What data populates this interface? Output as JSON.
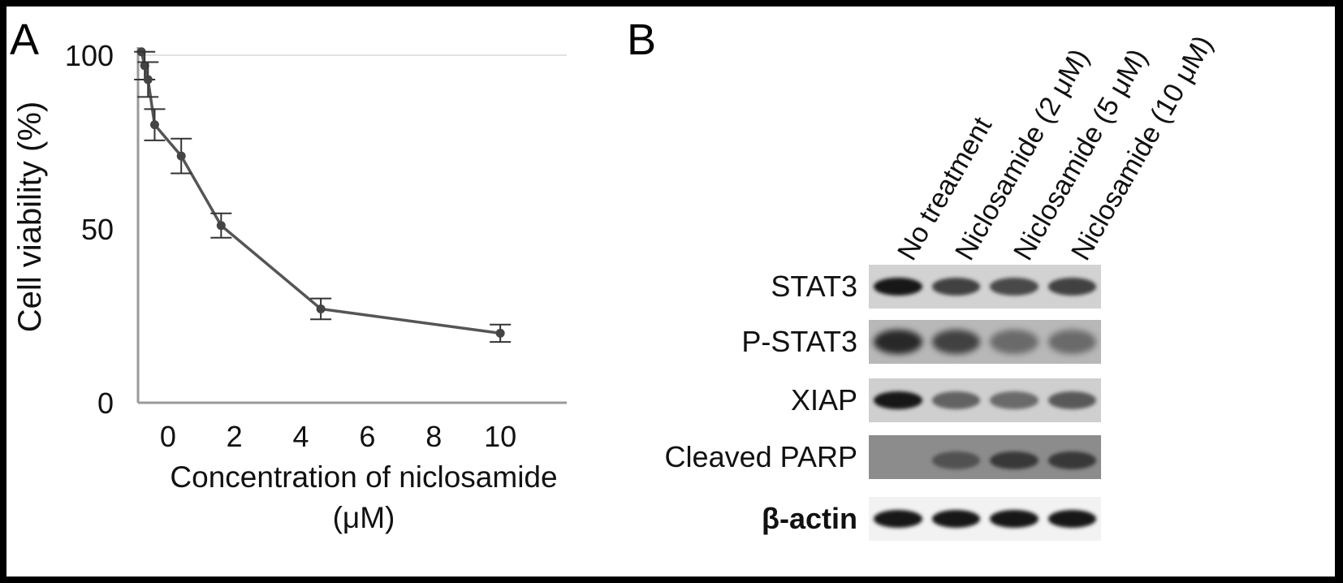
{
  "panel_a": {
    "letter": "A",
    "chart_data": {
      "type": "line",
      "title": "",
      "xlabel": "Concentration of niclosamide (μM)",
      "xlabel_lines": [
        "Concentration of niclosamide",
        "(μM)"
      ],
      "ylabel": "Cell viability (%)",
      "xlim": [
        -0.9,
        12
      ],
      "ylim": [
        0,
        100
      ],
      "x_ticks": [
        0,
        2,
        4,
        6,
        8,
        10
      ],
      "y_ticks": [
        0,
        50,
        100
      ],
      "grid": false,
      "reference_line_y": 100,
      "series": [
        {
          "x": [
            -0.8,
            -0.7,
            -0.6,
            -0.4,
            0.4,
            1.6,
            4.6,
            10
          ],
          "y": [
            101,
            97,
            93,
            80,
            71,
            51,
            27,
            20
          ],
          "error": [
            0,
            4,
            5,
            4.5,
            5,
            3.5,
            3,
            2.5
          ],
          "color": "#555555"
        }
      ]
    }
  },
  "panel_b": {
    "letter": "B",
    "lanes": [
      "No treatment",
      "Niclosamide (2 μM)",
      "Niclosamide (5 μM)",
      "Niclosamide (10 μM)"
    ],
    "rows": [
      {
        "label": "STAT3",
        "bold": false,
        "intensity": [
          0.95,
          0.7,
          0.65,
          0.7
        ]
      },
      {
        "label": "P-STAT3",
        "bold": false,
        "intensity": [
          0.85,
          0.7,
          0.45,
          0.45
        ]
      },
      {
        "label": "XIAP",
        "bold": false,
        "intensity": [
          0.95,
          0.5,
          0.45,
          0.55
        ]
      },
      {
        "label": "Cleaved PARP",
        "bold": false,
        "intensity": [
          0.0,
          0.6,
          0.75,
          0.75
        ]
      },
      {
        "label": "β-actin",
        "bold": true,
        "intensity": [
          0.95,
          0.95,
          0.95,
          0.95
        ]
      }
    ]
  }
}
